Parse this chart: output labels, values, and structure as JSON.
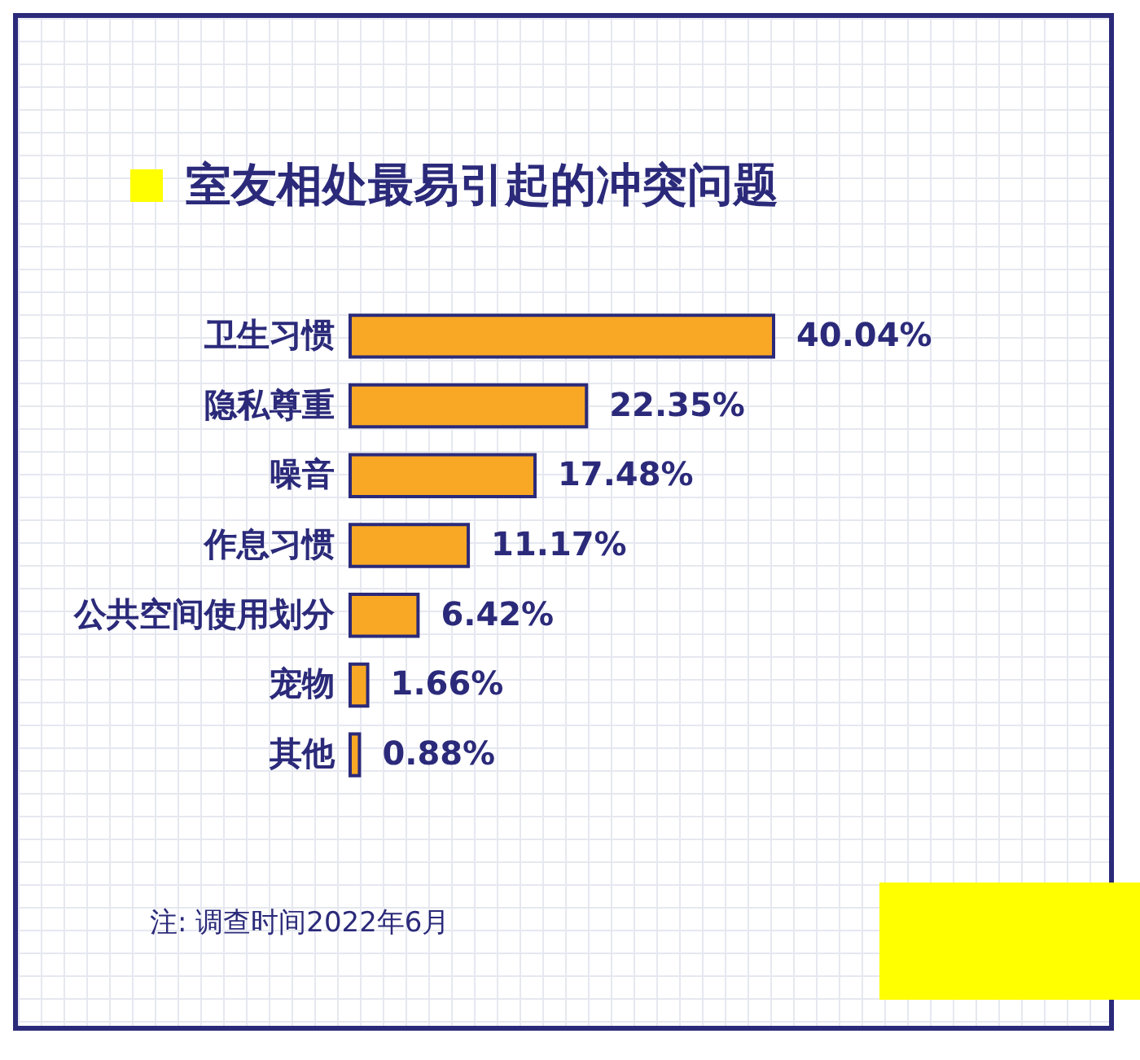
{
  "chart_data": {
    "type": "bar",
    "orientation": "horizontal",
    "title": "室友相处最易引起的冲突问题",
    "categories": [
      "卫生习惯",
      "隐私尊重",
      "噪音",
      "作息习惯",
      "公共空间使用划分",
      "宠物",
      "其他"
    ],
    "values": [
      40.04,
      22.35,
      17.48,
      11.17,
      6.42,
      1.66,
      0.88
    ],
    "value_labels": [
      "40.04%",
      "22.35%",
      "17.48%",
      "11.17%",
      "6.42%",
      "1.66%",
      "0.88%"
    ],
    "color": "#f9a825",
    "annotations": [
      "注: 调查时间2022年6月"
    ]
  }
}
